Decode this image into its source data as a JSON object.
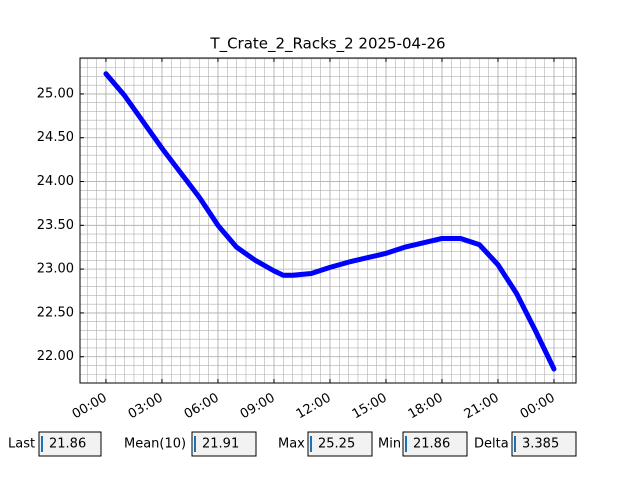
{
  "chart_data": {
    "type": "line",
    "title": "T_Crate_2_Racks_2 2025-04-26",
    "x": [
      0,
      1,
      2,
      3,
      4,
      5,
      6,
      7,
      8,
      9,
      9.5,
      10,
      11,
      12,
      13,
      14,
      15,
      16,
      17,
      18,
      19,
      20,
      21,
      22,
      23,
      24
    ],
    "series": [
      {
        "name": "T_Crate_2_Racks_2",
        "color": "#0000ff",
        "values": [
          25.23,
          24.98,
          24.68,
          24.38,
          24.1,
          23.82,
          23.5,
          23.25,
          23.1,
          22.98,
          22.93,
          22.93,
          22.95,
          23.02,
          23.08,
          23.13,
          23.18,
          23.25,
          23.3,
          23.35,
          23.35,
          23.28,
          23.05,
          22.72,
          22.3,
          21.86
        ]
      }
    ],
    "xlim": [
      -1.39,
      25.18
    ],
    "xticks": [
      {
        "value": 0,
        "label": "00:00"
      },
      {
        "value": 3,
        "label": "03:00"
      },
      {
        "value": 6,
        "label": "06:00"
      },
      {
        "value": 9,
        "label": "09:00"
      },
      {
        "value": 12,
        "label": "12:00"
      },
      {
        "value": 15,
        "label": "15:00"
      },
      {
        "value": 18,
        "label": "18:00"
      },
      {
        "value": 21,
        "label": "21:00"
      },
      {
        "value": 24,
        "label": "00:00"
      }
    ],
    "ylim": [
      21.7,
      25.41
    ],
    "yticks": [
      {
        "value": 22,
        "label": "22.00"
      },
      {
        "value": 22.5,
        "label": "22.50"
      },
      {
        "value": 23,
        "label": "23.00"
      },
      {
        "value": 23.5,
        "label": "23.50"
      },
      {
        "value": 24,
        "label": "24.00"
      },
      {
        "value": 24.5,
        "label": "24.50"
      },
      {
        "value": 25,
        "label": "25.00"
      }
    ],
    "grid": true
  },
  "stats": [
    {
      "label": "Last",
      "value": 21.86
    },
    {
      "label": "Mean(10)",
      "value": 21.91
    },
    {
      "label": "Max",
      "value": 25.25
    },
    {
      "label": "Min",
      "value": 21.86
    },
    {
      "label": "Delta",
      "value": 3.385
    }
  ]
}
